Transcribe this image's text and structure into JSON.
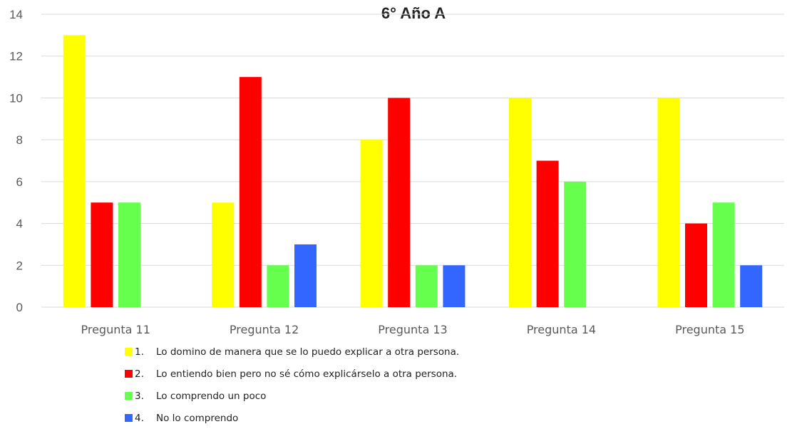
{
  "chart_data": {
    "type": "bar",
    "title": "6° Año A",
    "categories": [
      "Pregunta 11",
      "Pregunta 12",
      "Pregunta 13",
      "Pregunta 14",
      "Pregunta 15"
    ],
    "ylim": [
      0,
      14
    ],
    "yticks": [
      0,
      2,
      4,
      6,
      8,
      10,
      12,
      14
    ],
    "grid": true,
    "legend_position": "bottom",
    "series": [
      {
        "name": "Lo domino de manera que se lo puedo explicar a otra persona.",
        "number": "1.",
        "color": "#ffff00",
        "values": [
          13,
          5,
          8,
          10,
          10
        ]
      },
      {
        "name": "Lo entiendo bien pero no sé cómo explicárselo a otra persona.",
        "number": "2.",
        "color": "#ff0000",
        "values": [
          5,
          11,
          10,
          7,
          4
        ]
      },
      {
        "name": "Lo comprendo un poco",
        "number": "3.",
        "color": "#66ff4d",
        "values": [
          5,
          2,
          2,
          6,
          5
        ]
      },
      {
        "name": "No lo comprendo",
        "number": "4.",
        "color": "#3366ff",
        "values": [
          0,
          3,
          2,
          0,
          2
        ]
      }
    ]
  }
}
